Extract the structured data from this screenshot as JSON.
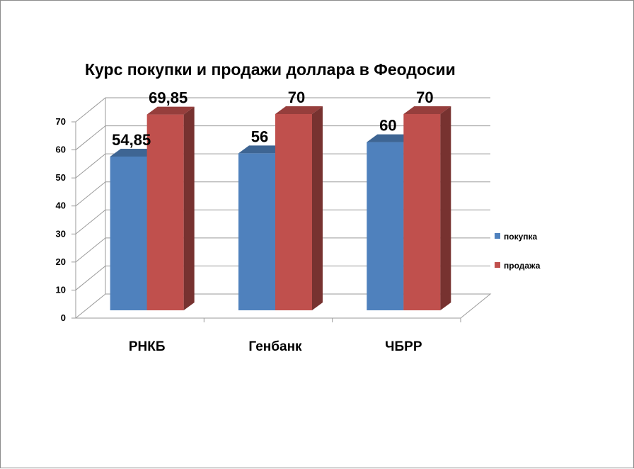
{
  "chart_data": {
    "type": "bar",
    "title": "Курс покупки и продажи доллара в Феодосии",
    "categories": [
      "РНКБ",
      "Генбанк",
      "ЧБРР"
    ],
    "series": [
      {
        "name": "покупка",
        "values": [
          54.85,
          56,
          60
        ],
        "labels": [
          "54,85",
          "56",
          "60"
        ],
        "color": "#4f81bd"
      },
      {
        "name": "продажа",
        "values": [
          69.85,
          70,
          70
        ],
        "labels": [
          "69,85",
          "70",
          "70"
        ],
        "color": "#c0504d"
      }
    ],
    "ylim": [
      0,
      70
    ],
    "yticks": [
      "0",
      "10",
      "20",
      "30",
      "40",
      "50",
      "60",
      "70"
    ],
    "grid": true,
    "legend": "right",
    "style": "3d-clustered-column"
  }
}
